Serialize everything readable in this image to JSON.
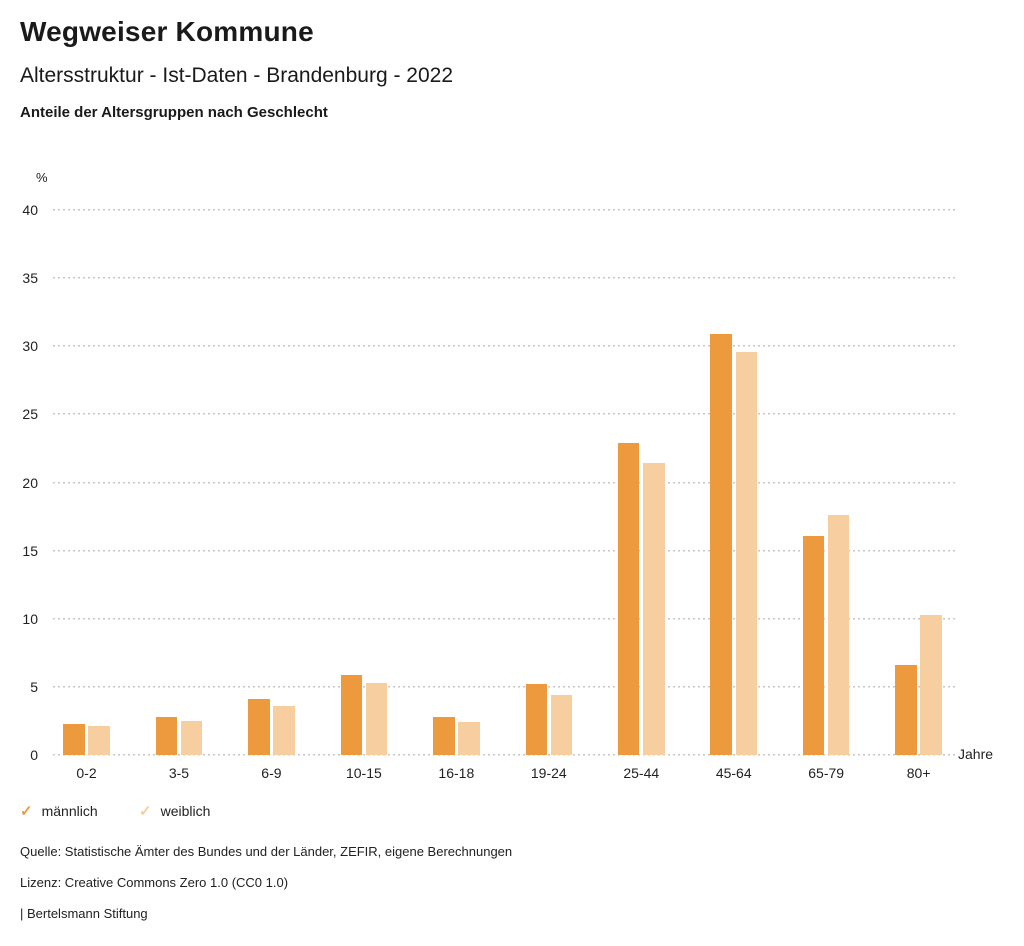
{
  "header": {
    "title": "Wegweiser Kommune",
    "subtitle": "Altersstruktur - Ist-Daten - Brandenburg - 2022",
    "subsubtitle": "Anteile der Altersgruppen nach Geschlecht"
  },
  "chart_data": {
    "type": "bar",
    "title": "Anteile der Altersgruppen nach Geschlecht",
    "unit_label": "%",
    "x_unit_label": "Jahre",
    "categories": [
      "0-2",
      "3-5",
      "6-9",
      "10-15",
      "16-18",
      "19-24",
      "25-44",
      "45-64",
      "65-79",
      "80+"
    ],
    "series": [
      {
        "name": "männlich",
        "color": "#EC9A3D",
        "values": [
          2.3,
          2.8,
          4.1,
          5.9,
          2.8,
          5.2,
          22.9,
          30.9,
          16.1,
          6.6
        ]
      },
      {
        "name": "weiblich",
        "color": "#F6CE9F",
        "values": [
          2.1,
          2.5,
          3.6,
          5.3,
          2.4,
          4.4,
          21.4,
          29.6,
          17.6,
          10.3
        ]
      }
    ],
    "ylim": [
      0,
      40
    ],
    "ytick_step": 5,
    "grid": "horizontal-dotted",
    "legend_position": "bottom-left",
    "gridline_color": "#c6c6c6"
  },
  "legend": {
    "check_icon": "✓",
    "items": [
      {
        "label": "männlich"
      },
      {
        "label": "weiblich"
      }
    ]
  },
  "footer": {
    "source": "Quelle: Statistische Ämter des Bundes und der Länder, ZEFIR, eigene Berechnungen",
    "license": "Lizenz: Creative Commons Zero 1.0 (CC0 1.0)",
    "attribution": "| Bertelsmann Stiftung"
  }
}
